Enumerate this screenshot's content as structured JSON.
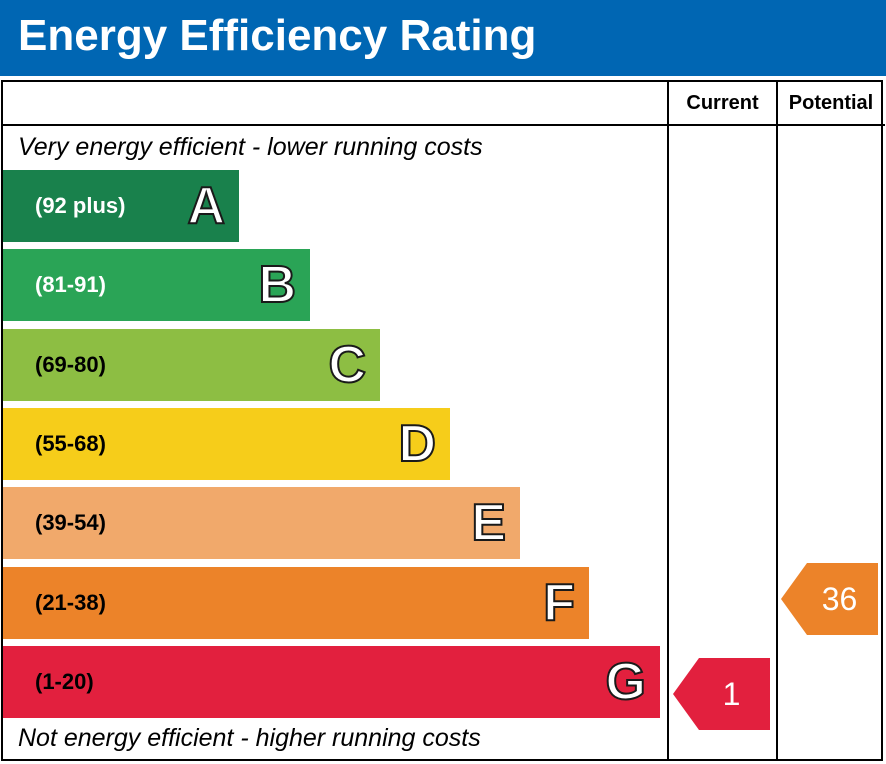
{
  "title": "Energy Efficiency Rating",
  "columns": {
    "current": "Current",
    "potential": "Potential"
  },
  "notes": {
    "top": "Very energy efficient - lower running costs",
    "bottom": "Not energy efficient - higher running costs"
  },
  "chart_data": {
    "type": "bar",
    "title": "Energy Efficiency Rating",
    "bands": [
      {
        "letter": "A",
        "range": "(92 plus)",
        "min": 92,
        "max": 100,
        "color": "#19814c",
        "text_color": "#ffffff"
      },
      {
        "letter": "B",
        "range": "(81-91)",
        "min": 81,
        "max": 91,
        "color": "#2aa456",
        "text_color": "#ffffff"
      },
      {
        "letter": "C",
        "range": "(69-80)",
        "min": 69,
        "max": 80,
        "color": "#8dbe43",
        "text_color": "#000000"
      },
      {
        "letter": "D",
        "range": "(55-68)",
        "min": 55,
        "max": 68,
        "color": "#f6cd1a",
        "text_color": "#000000"
      },
      {
        "letter": "E",
        "range": "(39-54)",
        "min": 39,
        "max": 54,
        "color": "#f1a96b",
        "text_color": "#000000"
      },
      {
        "letter": "F",
        "range": "(21-38)",
        "min": 21,
        "max": 38,
        "color": "#ec8329",
        "text_color": "#000000"
      },
      {
        "letter": "G",
        "range": "(1-20)",
        "min": 1,
        "max": 20,
        "color": "#e2203e",
        "text_color": "#000000"
      }
    ],
    "current": {
      "value": 1,
      "band": "G",
      "color": "#e2203e"
    },
    "potential": {
      "value": 36,
      "band": "F",
      "color": "#ec8329"
    }
  }
}
